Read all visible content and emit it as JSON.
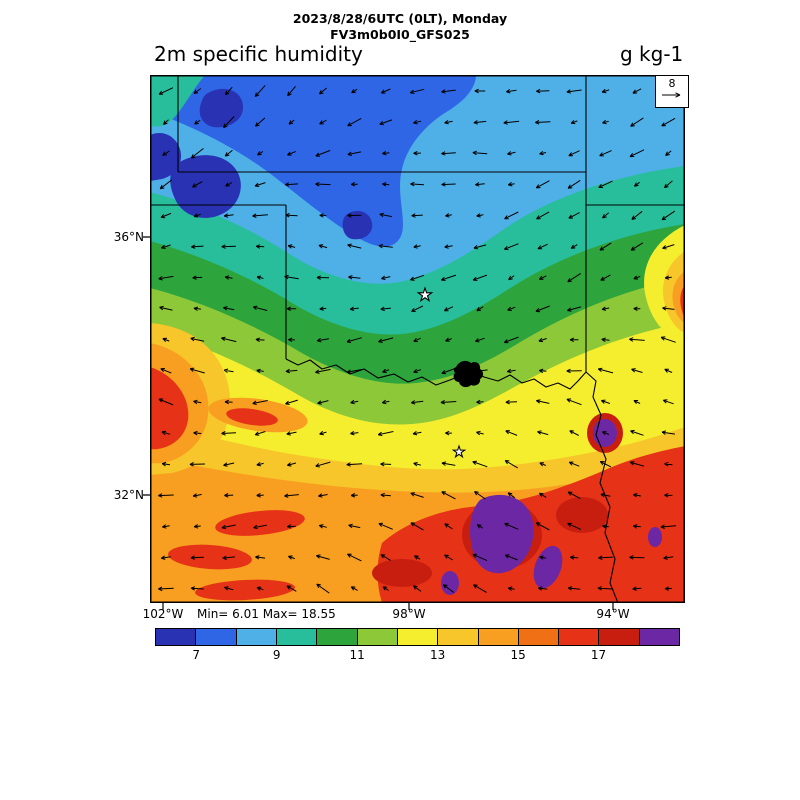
{
  "header": {
    "line1": "2023/8/28/6UTC (0LT), Monday",
    "line2": "FV3m0b0I0_GFS025"
  },
  "title": {
    "variable": "2m specific humidity",
    "units": "g kg-1"
  },
  "axes": {
    "lat_ticks": [
      {
        "label": "36°N"
      },
      {
        "label": "32°N"
      }
    ],
    "lon_ticks": [
      {
        "label": "102°W"
      },
      {
        "label": "98°W"
      },
      {
        "label": "94°W"
      }
    ]
  },
  "stats": {
    "min_max": "Min= 6.01 Max= 18.55"
  },
  "reference_vector": {
    "label": "8"
  },
  "colorbar": {
    "levels": [
      6,
      7,
      8,
      9,
      10,
      11,
      12,
      13,
      14,
      15,
      16,
      17,
      18,
      19
    ],
    "tick_labels": [
      "7",
      "9",
      "11",
      "13",
      "15",
      "17"
    ],
    "colors": [
      "#2832B2",
      "#2E66E6",
      "#4FB0E8",
      "#28BE9C",
      "#2EA43C",
      "#8CC838",
      "#F5EE2F",
      "#F7C62A",
      "#F89E20",
      "#F07016",
      "#E63216",
      "#C81E10",
      "#6C28A4"
    ]
  },
  "wind": {
    "grid_cols": 17,
    "grid_rows": 17,
    "reference_value": 8
  }
}
